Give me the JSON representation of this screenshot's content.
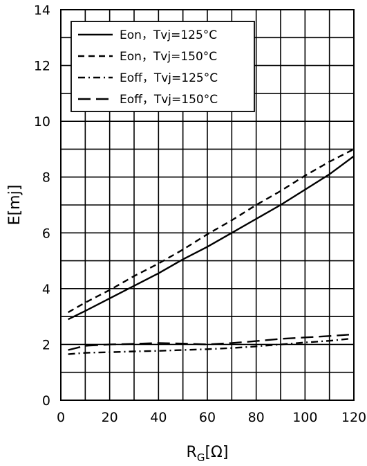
{
  "chart_data": {
    "type": "line",
    "xlabel": {
      "main": "R",
      "sub": "G",
      "unit": "[Ω]"
    },
    "ylabel": "E[mj]",
    "xlim": [
      0,
      120
    ],
    "ylim": [
      0,
      14
    ],
    "xticks": [
      "0",
      "20",
      "40",
      "60",
      "80",
      "100",
      "120"
    ],
    "yticks": [
      "0",
      "2",
      "4",
      "6",
      "8",
      "10",
      "12",
      "14"
    ],
    "x_grid_step": 10,
    "y_grid_step": 1,
    "grid": true,
    "legend_position": "top-left",
    "series": [
      {
        "name": "Eon，Tvj=125°C",
        "style": "solid",
        "x": [
          3,
          10,
          20,
          30,
          40,
          50,
          60,
          70,
          80,
          90,
          100,
          110,
          120
        ],
        "y": [
          2.9,
          3.2,
          3.65,
          4.1,
          4.55,
          5.05,
          5.5,
          6.0,
          6.5,
          7.0,
          7.55,
          8.1,
          8.75
        ]
      },
      {
        "name": "Eon，Tvj=150°C",
        "style": "dashed",
        "x": [
          3,
          10,
          20,
          30,
          40,
          50,
          60,
          70,
          80,
          90,
          100,
          110,
          120
        ],
        "y": [
          3.15,
          3.5,
          3.95,
          4.45,
          4.9,
          5.4,
          5.95,
          6.45,
          7.0,
          7.5,
          8.05,
          8.55,
          9.0
        ]
      },
      {
        "name": "Eoff，Tvj=125°C",
        "style": "dashdot",
        "x": [
          3,
          10,
          20,
          30,
          40,
          50,
          60,
          70,
          80,
          90,
          100,
          110,
          118
        ],
        "y": [
          1.65,
          1.7,
          1.72,
          1.75,
          1.77,
          1.8,
          1.83,
          1.87,
          1.93,
          2.0,
          2.07,
          2.13,
          2.2
        ]
      },
      {
        "name": "Eoff，Tvj=150°C",
        "style": "longdash",
        "x": [
          3,
          10,
          20,
          30,
          40,
          50,
          60,
          70,
          80,
          90,
          100,
          110,
          118
        ],
        "y": [
          1.8,
          1.95,
          2.0,
          2.02,
          2.05,
          2.03,
          2.0,
          2.05,
          2.12,
          2.2,
          2.25,
          2.3,
          2.35
        ]
      }
    ]
  }
}
